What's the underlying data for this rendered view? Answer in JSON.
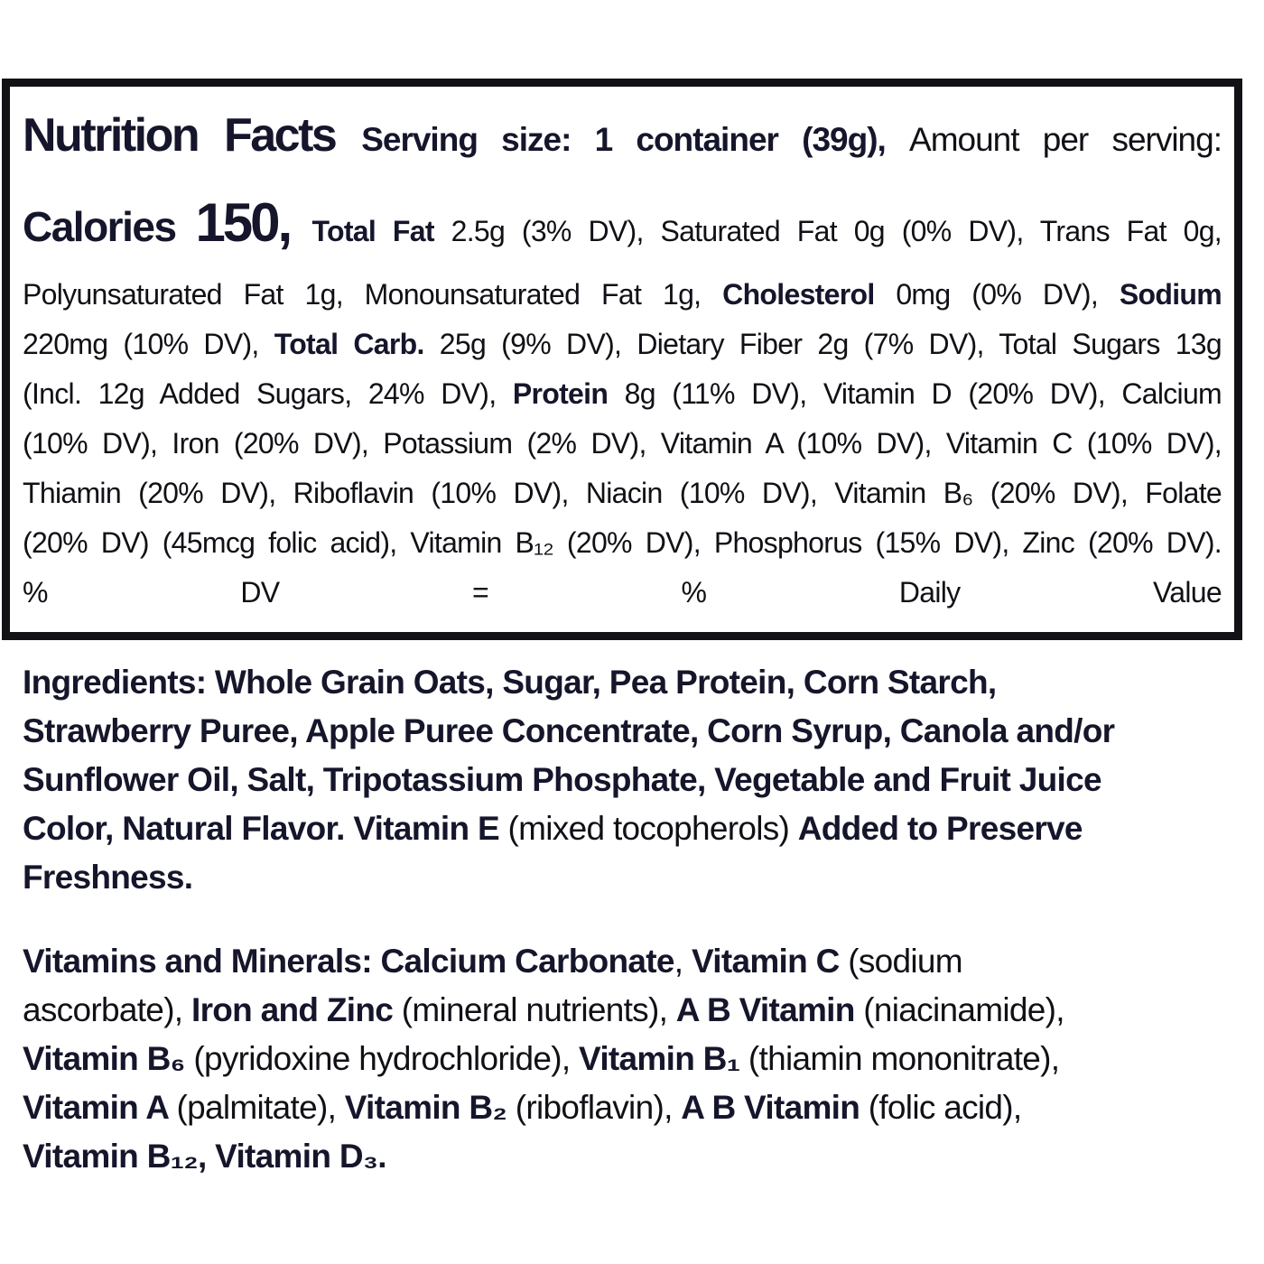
{
  "colors": {
    "background": "#ffffff",
    "border": "#121216",
    "text_bold": "#15162b",
    "text_regular": "#101016"
  },
  "summary": {
    "title": "Nutrition Facts",
    "serving_size": "1 container (39g)",
    "calories": "150"
  },
  "box": {
    "lines": [
      {
        "segments": [
          {
            "t": "Nutrition Facts ",
            "b": true,
            "s": "title"
          },
          {
            "t": "Serving size: 1 container (39g), ",
            "b": true,
            "s": "serving"
          },
          {
            "t": "Amount per serving:",
            "b": false,
            "s": "serving"
          }
        ]
      },
      {
        "segments": [
          {
            "t": "Calories ",
            "b": true,
            "s": "cal-label"
          },
          {
            "t": "150, ",
            "b": true,
            "s": "cal-value"
          },
          {
            "t": "Total Fat ",
            "b": true
          },
          {
            "t": "2.5g (3% DV), Saturated Fat 0g (0% DV), Trans Fat 0g,",
            "b": false
          }
        ]
      },
      {
        "segments": [
          {
            "t": "Polyunsaturated Fat 1g, Monounsaturated Fat 1g, ",
            "b": false
          },
          {
            "t": "Cholesterol ",
            "b": true
          },
          {
            "t": "0mg (0% DV), ",
            "b": false
          },
          {
            "t": "Sodium",
            "b": true
          }
        ]
      },
      {
        "segments": [
          {
            "t": "220mg (10% DV), ",
            "b": false
          },
          {
            "t": "Total Carb. ",
            "b": true
          },
          {
            "t": "25g (9% DV), Dietary Fiber 2g (7% DV), Total Sugars 13g",
            "b": false
          }
        ]
      },
      {
        "segments": [
          {
            "t": "(Incl. 12g Added Sugars, 24% DV), ",
            "b": false
          },
          {
            "t": "Protein ",
            "b": true
          },
          {
            "t": "8g (11% DV), Vitamin D (20% DV), Calcium",
            "b": false
          }
        ]
      },
      {
        "segments": [
          {
            "t": "(10% DV), Iron (20% DV), Potassium (2% DV), Vitamin A (10% DV), Vitamin C (10% DV),",
            "b": false
          }
        ]
      },
      {
        "segments": [
          {
            "t": "Thiamin (20% DV), Riboflavin (10% DV), Niacin (10% DV), Vitamin B₆ (20% DV), Folate",
            "b": false
          }
        ]
      },
      {
        "segments": [
          {
            "t": "(20% DV) (45mcg folic acid), Vitamin B₁₂ (20% DV), Phosphorus (15% DV), Zinc (20% DV).",
            "b": false
          }
        ]
      },
      {
        "segments": [
          {
            "t": "% DV = % Daily Value",
            "b": false
          }
        ]
      }
    ]
  },
  "ingredients": {
    "lines": [
      {
        "segments": [
          {
            "t": "Ingredients: Whole Grain Oats, Sugar, Pea Protein, Corn Starch,",
            "b": true
          }
        ]
      },
      {
        "segments": [
          {
            "t": "Strawberry Puree, Apple Puree Concentrate, Corn Syrup, Canola and/or",
            "b": true
          }
        ]
      },
      {
        "segments": [
          {
            "t": "Sunflower Oil, Salt, Tripotassium Phosphate, Vegetable and Fruit Juice",
            "b": true
          }
        ]
      },
      {
        "segments": [
          {
            "t": "Color, Natural Flavor. Vitamin E ",
            "b": true
          },
          {
            "t": "(mixed tocopherols) ",
            "b": false
          },
          {
            "t": "Added to Preserve",
            "b": true
          }
        ]
      },
      {
        "segments": [
          {
            "t": "Freshness.",
            "b": true
          }
        ]
      }
    ]
  },
  "vitamins": {
    "lines": [
      {
        "segments": [
          {
            "t": "Vitamins and Minerals: Calcium Carbonate",
            "b": true
          },
          {
            "t": ", ",
            "b": false
          },
          {
            "t": "Vitamin C ",
            "b": true
          },
          {
            "t": "(sodium",
            "b": false
          }
        ]
      },
      {
        "segments": [
          {
            "t": "ascorbate), ",
            "b": false
          },
          {
            "t": "Iron and Zinc ",
            "b": true
          },
          {
            "t": "(mineral nutrients), ",
            "b": false
          },
          {
            "t": "A B Vitamin ",
            "b": true
          },
          {
            "t": "(niacinamide),",
            "b": false
          }
        ]
      },
      {
        "segments": [
          {
            "t": "Vitamin B₆ ",
            "b": true
          },
          {
            "t": "(pyridoxine hydrochloride), ",
            "b": false
          },
          {
            "t": "Vitamin B₁ ",
            "b": true
          },
          {
            "t": "(thiamin mononitrate),",
            "b": false
          }
        ]
      },
      {
        "segments": [
          {
            "t": "Vitamin A ",
            "b": true
          },
          {
            "t": "(palmitate), ",
            "b": false
          },
          {
            "t": "Vitamin B₂ ",
            "b": true
          },
          {
            "t": "(riboflavin), ",
            "b": false
          },
          {
            "t": "A B Vitamin ",
            "b": true
          },
          {
            "t": "(folic acid),",
            "b": false
          }
        ]
      },
      {
        "segments": [
          {
            "t": "Vitamin B₁₂, Vitamin D₃.",
            "b": true
          }
        ]
      }
    ]
  }
}
